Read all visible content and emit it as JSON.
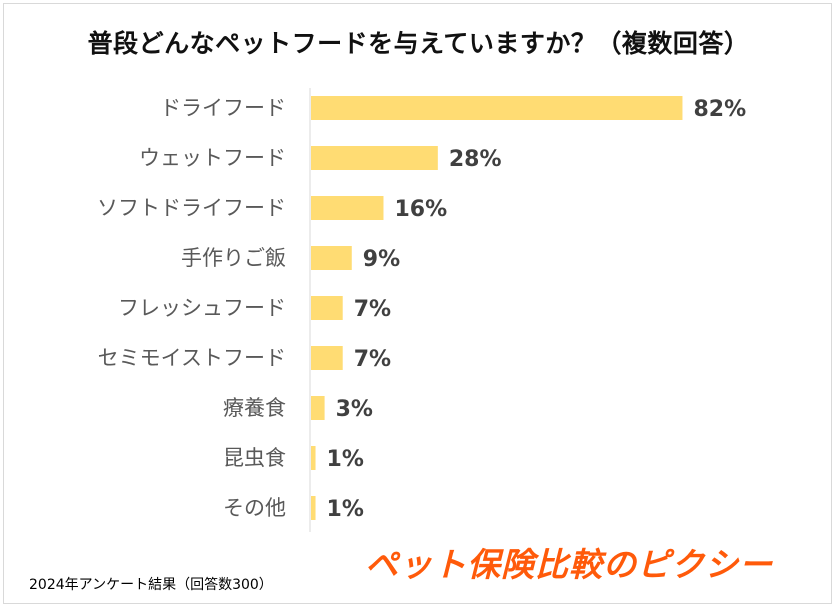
{
  "chart_data": {
    "type": "bar",
    "orientation": "horizontal",
    "title": "普段どんなペットフードを与えていますか？（複数回答）",
    "categories": [
      "ドライフード",
      "ウェットフード",
      "ソフトドライフード",
      "手作りご飯",
      "フレッシュフード",
      "セミモイストフード",
      "療養食",
      "昆虫食",
      "その他"
    ],
    "values": [
      82,
      28,
      16,
      9,
      7,
      7,
      3,
      1,
      1
    ],
    "value_labels": [
      "82%",
      "28%",
      "16%",
      "9%",
      "7%",
      "7%",
      "3%",
      "1%",
      "1%"
    ],
    "unit": "%",
    "xlim": [
      0,
      100
    ],
    "grid": false,
    "bar_color": "#ffdc73"
  },
  "footnote": "2024年アンケート結果（回答数300）",
  "brand": "ペット保険比較のピクシー",
  "colors": {
    "bar": "#ffdc73",
    "brand": "#ff5a0a",
    "axis": "#d9d9d9"
  }
}
